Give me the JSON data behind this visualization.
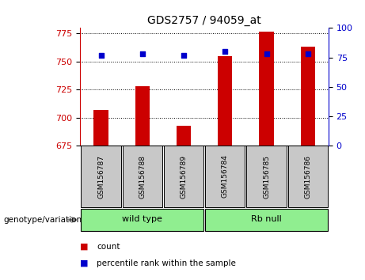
{
  "title": "GDS2757 / 94059_at",
  "samples": [
    "GSM156787",
    "GSM156788",
    "GSM156789",
    "GSM156784",
    "GSM156785",
    "GSM156786"
  ],
  "counts": [
    707,
    728,
    693,
    755,
    777,
    763
  ],
  "percentiles": [
    77,
    78,
    77,
    80,
    78,
    78
  ],
  "group_labels": [
    "wild type",
    "Rb null"
  ],
  "group_color": "#90EE90",
  "group_edge_color": "#000000",
  "ylim_left": [
    675,
    780
  ],
  "ylim_right": [
    0,
    100
  ],
  "yticks_left": [
    675,
    700,
    725,
    750,
    775
  ],
  "yticks_right": [
    0,
    25,
    50,
    75,
    100
  ],
  "bar_color": "#cc0000",
  "scatter_color": "#0000cc",
  "label_bg": "#c8c8c8",
  "genotype_label": "genotype/variation",
  "legend_count": "count",
  "legend_percentile": "percentile rank within the sample",
  "bar_width": 0.35
}
